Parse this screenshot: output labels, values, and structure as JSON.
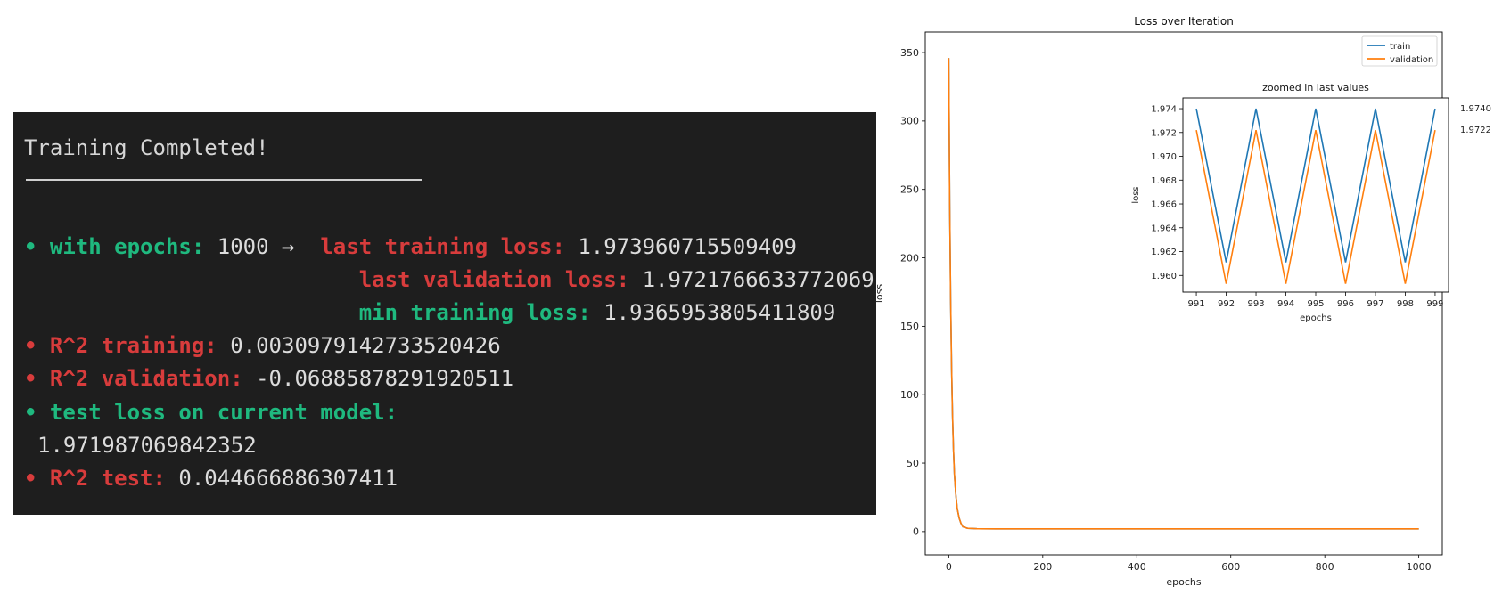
{
  "terminal": {
    "title": "Training Completed!",
    "bullet": "•",
    "epochs_label": "with epochs:",
    "epochs_value": "1000",
    "arrow": "→",
    "last_train_label": "last training loss:",
    "last_train_value": "1.973960715509409",
    "last_val_label": "last validation loss:",
    "last_val_value": "1.9721766633772069",
    "min_train_label": "min training loss:",
    "min_train_value": "1.9365953805411809",
    "r2_train_label": "R^2 training:",
    "r2_train_value": "0.003097914273352042б",
    "r2_val_label": "R^2 validation:",
    "r2_val_value": "-0.06885878291920511",
    "test_loss_label": "test loss on current model:",
    "test_loss_value": "1.971987069842352",
    "r2_test_label": "R^2 test:",
    "r2_test_value": "0.044666886307411",
    "colors": {
      "background": "#1e1e1e",
      "green": "#1fb97f",
      "red": "#d83c3c",
      "text": "#dcdcdc"
    }
  },
  "chart_data": [
    {
      "type": "line",
      "title": "Loss over Iteration",
      "xlabel": "epochs",
      "ylabel": "loss",
      "xlim": [
        -50,
        1050
      ],
      "ylim": [
        -17,
        365
      ],
      "xticks": [
        0,
        200,
        400,
        600,
        800,
        1000
      ],
      "yticks": [
        0,
        50,
        100,
        150,
        200,
        250,
        300,
        350
      ],
      "legend": "top-right",
      "series": [
        {
          "name": "train",
          "color": "#1f77b4",
          "x": [
            0,
            2,
            4,
            6,
            8,
            10,
            12,
            15,
            18,
            22,
            26,
            30,
            40,
            60,
            100,
            200,
            400,
            600,
            800,
            1000
          ],
          "y": [
            346,
            240,
            170,
            120,
            85,
            60,
            42,
            27,
            17,
            10,
            6,
            3.5,
            2.4,
            2.1,
            2.0,
            1.98,
            1.975,
            1.974,
            1.974,
            1.974
          ]
        },
        {
          "name": "validation",
          "color": "#ff7f0e",
          "x": [
            0,
            2,
            4,
            6,
            8,
            10,
            12,
            15,
            18,
            22,
            26,
            30,
            40,
            60,
            100,
            200,
            400,
            600,
            800,
            1000
          ],
          "y": [
            346,
            240,
            170,
            120,
            85,
            60,
            42,
            27,
            17,
            10,
            6,
            3.5,
            2.4,
            2.1,
            2.0,
            1.98,
            1.974,
            1.972,
            1.972,
            1.972
          ]
        }
      ]
    },
    {
      "type": "line",
      "title": "zoomed in last values",
      "xlabel": "epochs",
      "ylabel": "loss",
      "xlim": [
        990.55,
        999.45
      ],
      "ylim": [
        1.9586,
        1.9749
      ],
      "yticks": [
        1.96,
        1.962,
        1.964,
        1.966,
        1.968,
        1.97,
        1.972,
        1.974
      ],
      "ytick_labels": [
        "1.960",
        "1.962",
        "1.964",
        "1.966",
        "1.968",
        "1.970",
        "1.972",
        "1.974"
      ],
      "xticks": [
        991,
        992,
        993,
        994,
        995,
        996,
        997,
        998,
        999
      ],
      "annotations": [
        {
          "text": "1.9740",
          "y": 1.974
        },
        {
          "text": "1.9722",
          "y": 1.9722
        }
      ],
      "series": [
        {
          "name": "train",
          "color": "#1f77b4",
          "x": [
            991,
            992,
            993,
            994,
            995,
            996,
            997,
            998,
            999
          ],
          "y": [
            1.974,
            1.9611,
            1.974,
            1.9611,
            1.974,
            1.9611,
            1.974,
            1.9611,
            1.974
          ]
        },
        {
          "name": "validation",
          "color": "#ff7f0e",
          "x": [
            991,
            992,
            993,
            994,
            995,
            996,
            997,
            998,
            999
          ],
          "y": [
            1.9722,
            1.9593,
            1.9722,
            1.9593,
            1.9722,
            1.9593,
            1.9722,
            1.9593,
            1.9722
          ]
        }
      ]
    }
  ]
}
